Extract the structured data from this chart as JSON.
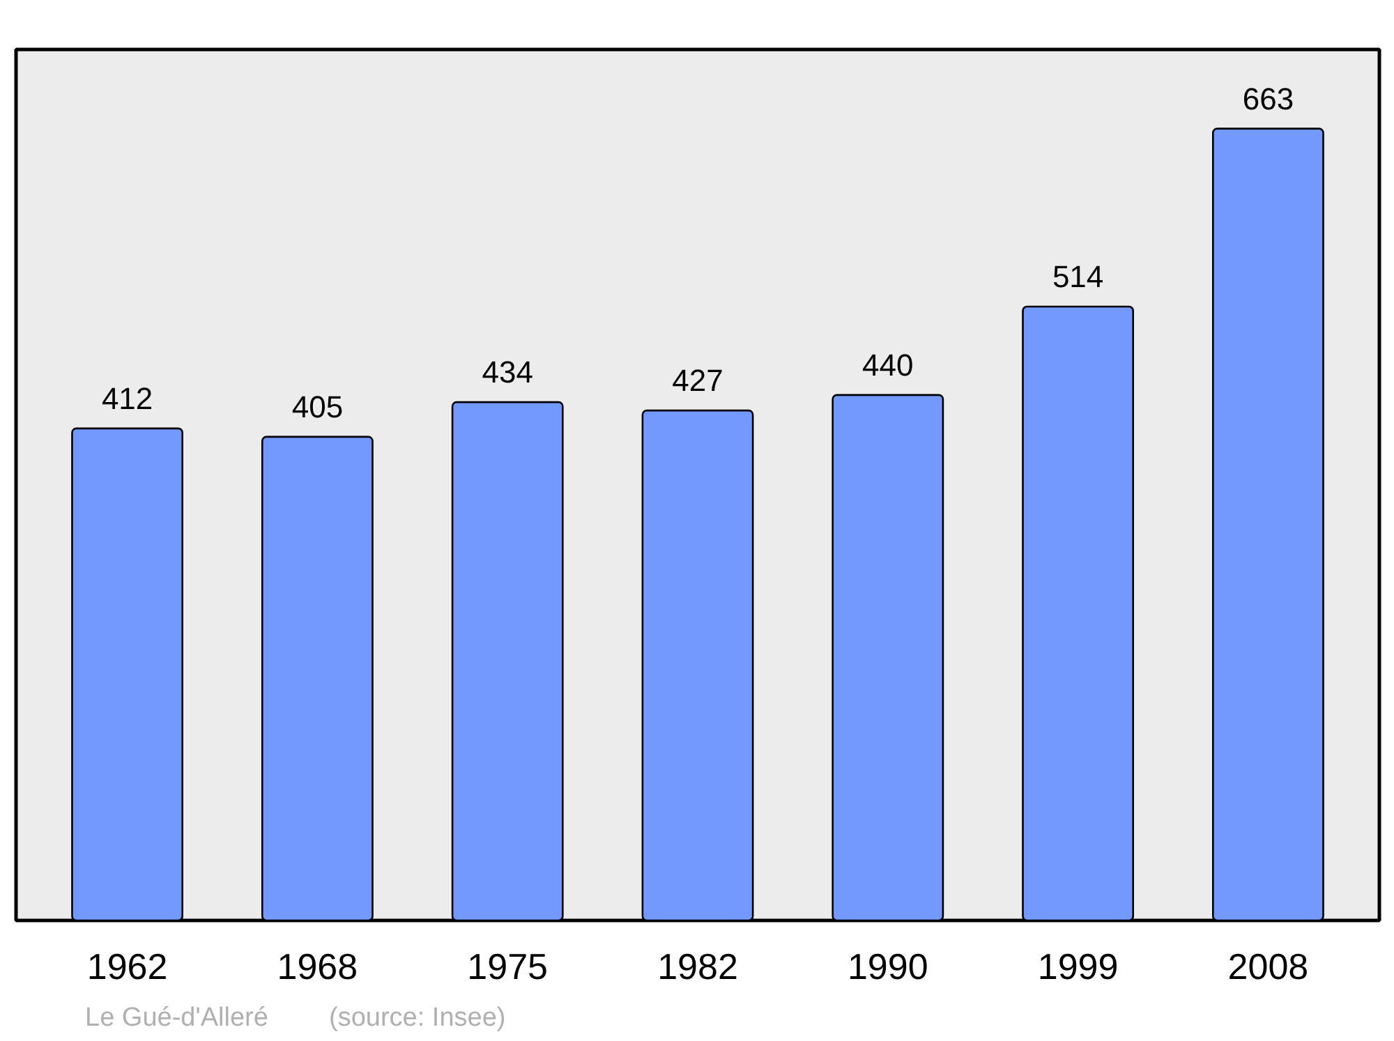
{
  "chart_data": {
    "type": "bar",
    "categories": [
      "1962",
      "1968",
      "1975",
      "1982",
      "1990",
      "1999",
      "2008"
    ],
    "values": [
      412,
      405,
      434,
      427,
      440,
      514,
      663
    ],
    "color": "#7399ff",
    "data_labels": true,
    "grid": false,
    "annotations": [
      "Le Gué-d'Alleré",
      "(source: Insee)"
    ]
  }
}
